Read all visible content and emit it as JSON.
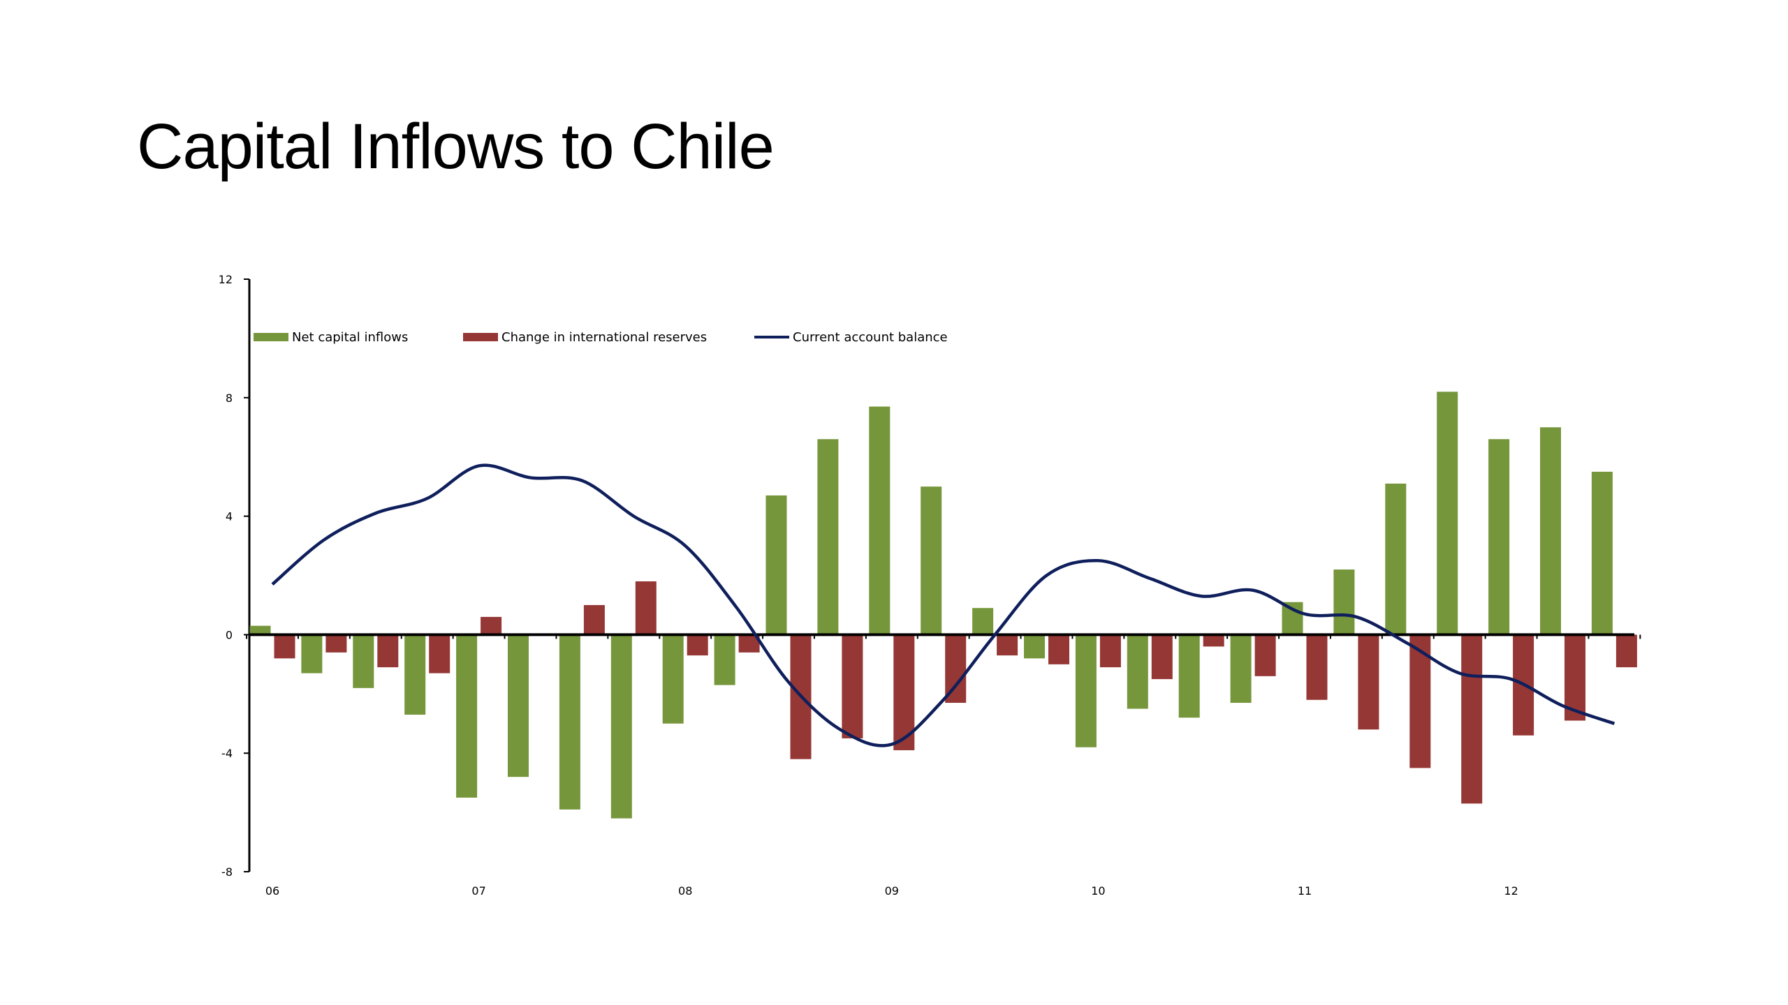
{
  "slide": {
    "title": "Capital Inflows to Chile"
  },
  "chart_data": {
    "type": "bar",
    "colors": {
      "inflows": "#76963b",
      "reserves": "#953735",
      "current_account": "#0f1f5c"
    },
    "ylim": [
      -8,
      12
    ],
    "y_ticks": [
      "12",
      "8",
      "4",
      "0",
      "-4",
      "-8"
    ],
    "y_tick_values": [
      12,
      8,
      4,
      0,
      -4,
      -8
    ],
    "x_tick_labels": [
      "06",
      "07",
      "08",
      "09",
      "10",
      "11",
      "12"
    ],
    "periods_per_year": 4,
    "grid": false,
    "legend_position": "top-left",
    "series": [
      {
        "name": "Net capital inflows",
        "kind": "bar",
        "values": [
          0.3,
          -1.3,
          -1.8,
          -2.7,
          -5.5,
          -4.8,
          -5.9,
          -6.2,
          -3.0,
          -1.7,
          4.7,
          6.6,
          7.7,
          5.0,
          0.9,
          -0.8,
          -3.8,
          -2.5,
          -2.8,
          -2.3,
          1.1,
          2.2,
          5.1,
          8.2,
          6.6,
          7.0,
          5.5
        ]
      },
      {
        "name": "Change in international reserves",
        "kind": "bar",
        "values": [
          -0.8,
          -0.6,
          -1.1,
          -1.3,
          0.6,
          null,
          1.0,
          1.8,
          -0.7,
          -0.6,
          -4.2,
          -3.5,
          -3.9,
          -2.3,
          -0.7,
          -1.0,
          -1.1,
          -1.5,
          -0.4,
          -1.4,
          -2.2,
          -3.2,
          -4.5,
          -5.7,
          -3.4,
          -2.9,
          -1.1
        ]
      },
      {
        "name": "Current account balance",
        "kind": "line",
        "values": [
          1.7,
          3.2,
          4.1,
          4.6,
          5.7,
          5.3,
          5.2,
          4.0,
          3.0,
          0.9,
          -1.6,
          -3.2,
          -3.7,
          -2.2,
          0.0,
          2.0,
          2.5,
          1.9,
          1.3,
          1.5,
          0.7,
          0.6,
          -0.3,
          -1.3,
          -1.5,
          -2.4,
          -3.0
        ]
      }
    ]
  }
}
